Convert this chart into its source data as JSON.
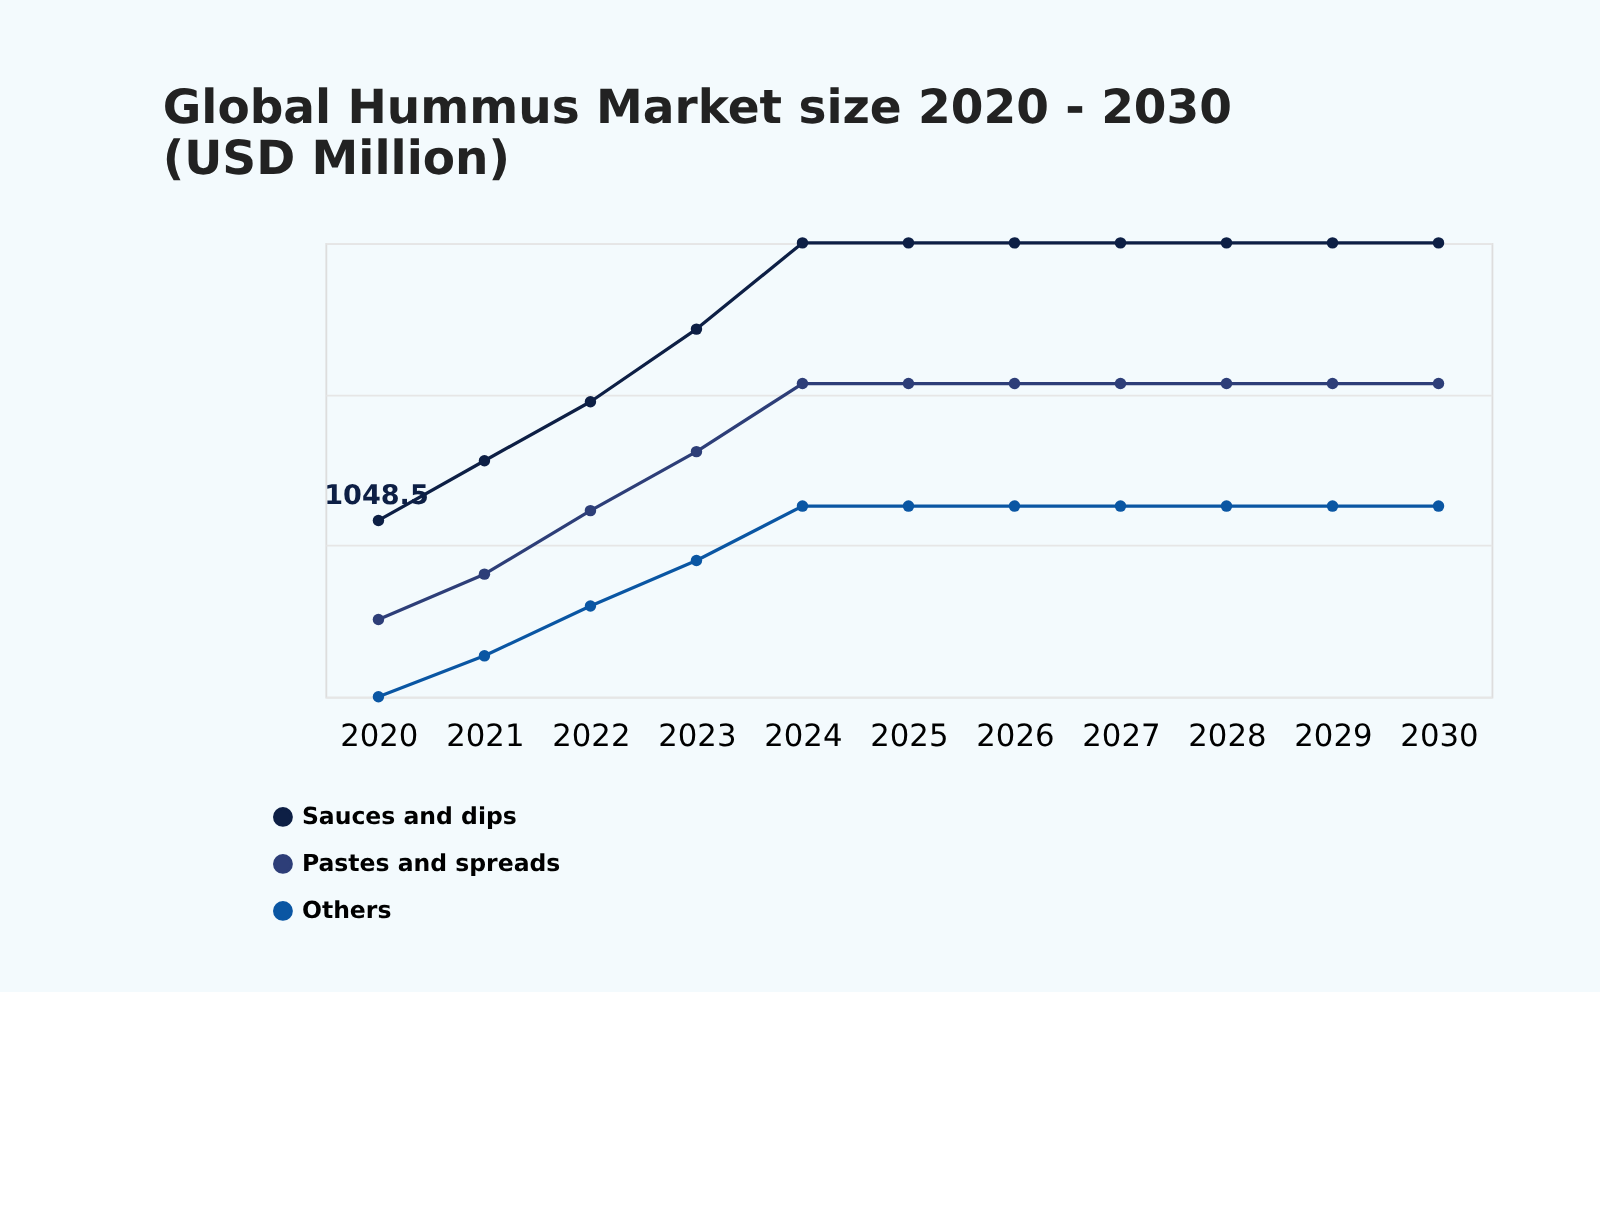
{
  "chart_data": {
    "type": "line",
    "title": "Global Hummus Market size 2020 - 2030 (USD Million)",
    "categories": [
      "2020",
      "2021",
      "2022",
      "2023",
      "2024",
      "2025",
      "2026",
      "2027",
      "2028",
      "2029",
      "2030"
    ],
    "ylim": [
      0,
      2700
    ],
    "yticks": [
      {
        "value": 0,
        "label": null
      },
      {
        "value": 900,
        "label": null
      },
      {
        "value": 1800,
        "label": null
      },
      {
        "value": 2700,
        "label": null
      }
    ],
    "grid": "y",
    "legend": "bottom left",
    "marker": "circle",
    "line_style": "solid",
    "series": [
      {
        "name": "Sauces and dips",
        "color": "#0d1f45",
        "values": [
          1048.5,
          1404,
          1755,
          2187,
          2700,
          2700,
          2700,
          2700,
          2700,
          2700,
          2700
        ],
        "value_labels": [
          "1048.5",
          null,
          null,
          null,
          null,
          null,
          null,
          null,
          null,
          null,
          null
        ]
      },
      {
        "name": "Pastes and spreads",
        "color": "#2d3e78",
        "values": [
          459,
          729,
          1107,
          1458,
          1863,
          1863,
          1863,
          1863,
          1863,
          1863,
          1863
        ]
      },
      {
        "name": "Others",
        "color": "#0a56a3",
        "values": [
          0,
          243,
          540,
          810,
          1134,
          1134,
          1134,
          1134,
          1134,
          1134,
          1134
        ]
      }
    ]
  }
}
